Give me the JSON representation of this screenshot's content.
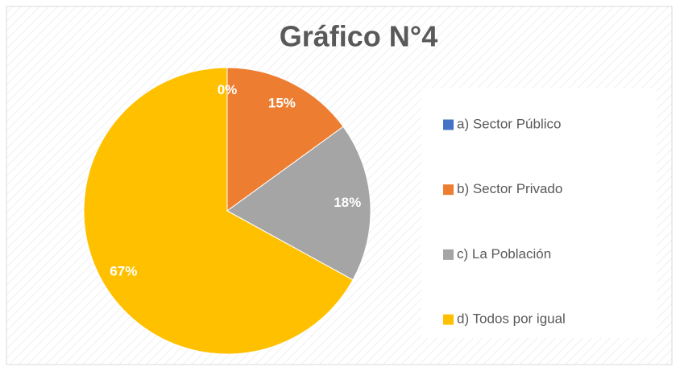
{
  "chart_data": {
    "type": "pie",
    "title": "Gráfico N°4",
    "categories": [
      "a) Sector Público",
      "b) Sector Privado",
      "c) La Población",
      "d) Todos por igual"
    ],
    "values": [
      0,
      15,
      18,
      67
    ],
    "value_labels": [
      "0%",
      "15%",
      "18%",
      "67%"
    ],
    "colors": [
      "#4472c4",
      "#ed7d31",
      "#a5a5a5",
      "#ffc000"
    ],
    "legend": "right"
  }
}
